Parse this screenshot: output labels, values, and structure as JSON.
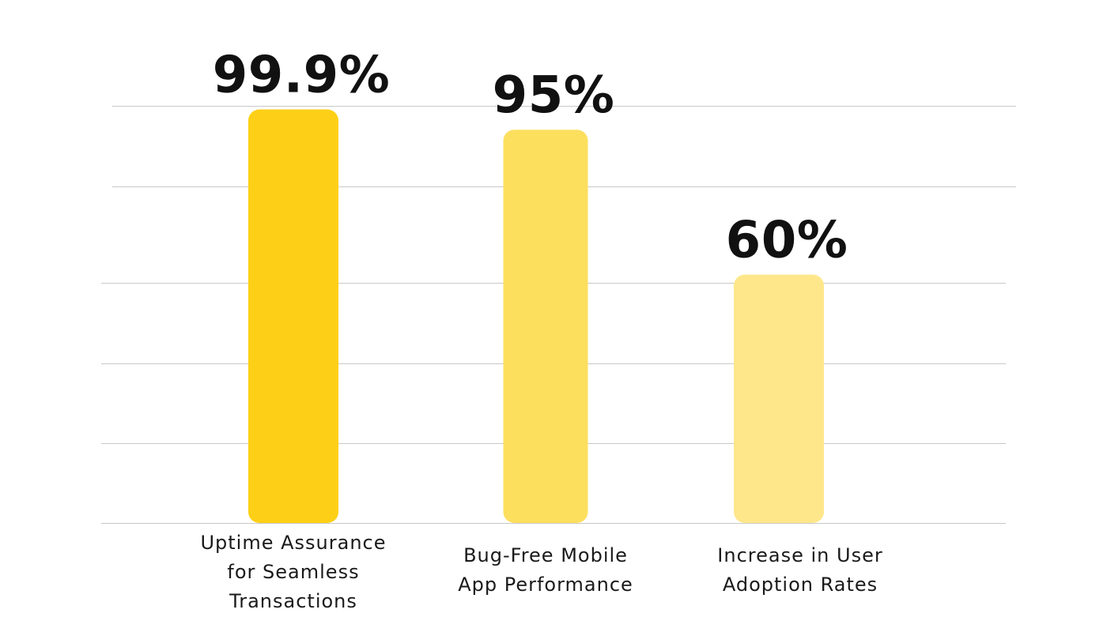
{
  "chart_data": {
    "type": "bar",
    "title": "",
    "xlabel": "",
    "ylabel": "",
    "grid": true,
    "categories": [
      "Uptime Assurance for Seamless Transactions",
      "Bug-Free Mobile App Performance",
      "Increase in User Adoption Rates"
    ],
    "category_label_lines": [
      [
        "Uptime Assurance",
        "for Seamless",
        "Transactions"
      ],
      [
        "Bug-Free Mobile",
        "App Performance"
      ],
      [
        "Increase in User",
        "Adoption Rates"
      ]
    ],
    "values": [
      99.9,
      95,
      60
    ],
    "data_labels": [
      "99.9%",
      "95%",
      "60%"
    ],
    "bar_colors": [
      "#FDD017",
      "#FDDF5E",
      "#FEE78B"
    ],
    "ylim": [
      0,
      104
    ]
  }
}
